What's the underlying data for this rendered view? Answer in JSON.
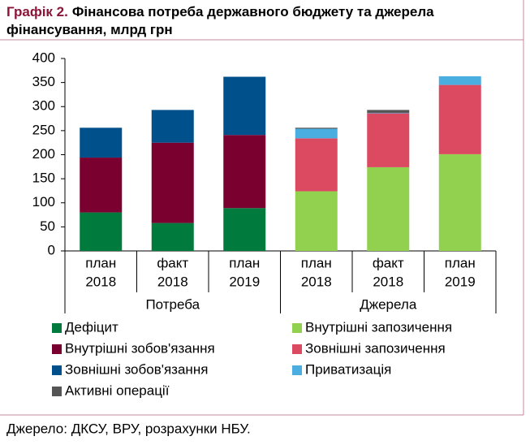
{
  "chart_data": {
    "type": "stacked_bar",
    "title_label": "Графік 2.",
    "title": "Фінансова потреба державного бюджету та джерела фінансування, млрд грн",
    "categories": [
      [
        "план",
        "2018"
      ],
      [
        "факт",
        "2018"
      ],
      [
        "план",
        "2019"
      ],
      [
        "план",
        "2018"
      ],
      [
        "факт",
        "2018"
      ],
      [
        "план",
        "2019"
      ]
    ],
    "groups": [
      "Потреба",
      "Джерела"
    ],
    "series": [
      {
        "name": "Дефіцит",
        "color": "#007a3d",
        "values": [
          80,
          58,
          89,
          null,
          null,
          null
        ]
      },
      {
        "name": "Внутрішні зобов'язання",
        "color": "#7a0030",
        "values": [
          114,
          167,
          152,
          null,
          null,
          null
        ]
      },
      {
        "name": "Зовнішні зобов'язання",
        "color": "#00508c",
        "values": [
          62,
          68,
          121,
          null,
          null,
          null
        ]
      },
      {
        "name": "Внутрішні запозичення",
        "color": "#92d050",
        "values": [
          null,
          null,
          null,
          124,
          174,
          201
        ]
      },
      {
        "name": "Зовнішні запозичення",
        "color": "#dc4a62",
        "values": [
          null,
          null,
          null,
          110,
          112,
          144
        ]
      },
      {
        "name": "Приватизація",
        "color": "#4aaee0",
        "values": [
          null,
          null,
          null,
          20,
          1,
          18
        ]
      },
      {
        "name": "Активні операції",
        "color": "#555555",
        "values": [
          null,
          null,
          null,
          2,
          6,
          null
        ]
      }
    ],
    "ylim": [
      0,
      400
    ],
    "yticks": [
      0,
      50,
      100,
      150,
      200,
      250,
      300,
      350,
      400
    ],
    "source": "Джерело: ДКСУ, ВРУ, розрахунки НБУ."
  }
}
